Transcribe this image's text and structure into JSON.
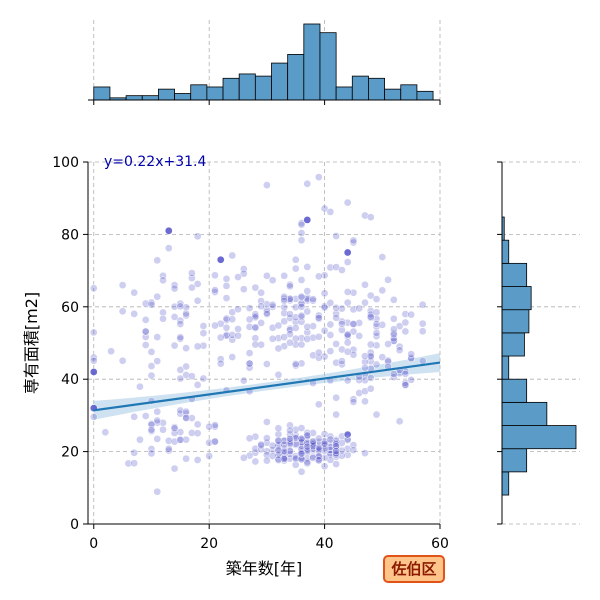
{
  "chart_data": {
    "type": "scatter",
    "xlabel": "築年数[年]",
    "ylabel": "専有面積[m2]",
    "xlim": [
      -1,
      60
    ],
    "ylim": [
      0,
      100
    ],
    "x_ticks": [
      0,
      20,
      40,
      60
    ],
    "y_ticks": [
      0,
      20,
      40,
      60,
      80,
      100
    ],
    "grid": true,
    "annotation": "y=0.22x+31.4",
    "regression": {
      "slope": 0.22,
      "intercept": 31.4,
      "ci_halfwidth_ends": 2.6,
      "ci_halfwidth_mid": 1.1
    },
    "badge": "佐伯区",
    "colors": {
      "points": "#5050c8",
      "regression_line": "#1f77b4",
      "confidence_band": "#a6cbe6",
      "histogram": "#5a9bc8",
      "annotation": "#0000aa",
      "badge_fill": "#ffc48a",
      "badge_border": "#e0541a"
    },
    "x_hist": {
      "bin_start": 0,
      "bin_width": 2.8,
      "counts": [
        6,
        1,
        2,
        2,
        5,
        3,
        7,
        6,
        10,
        12,
        11,
        17,
        21,
        35,
        31,
        6,
        11,
        10,
        5,
        7,
        4
      ]
    },
    "y_hist": {
      "bin_start": 8,
      "bin_width": 6.4,
      "counts": [
        3,
        11,
        33,
        20,
        11,
        3,
        10,
        12,
        13,
        11,
        3,
        1,
        0,
        0,
        0
      ]
    },
    "clusters": [
      {
        "cx": 37,
        "cy": 21,
        "sx": 4.5,
        "sy": 2.5,
        "n": 170
      },
      {
        "cx": 35,
        "cy": 57,
        "sx": 8,
        "sy": 6,
        "n": 150
      },
      {
        "cx": 48,
        "cy": 45,
        "sx": 6,
        "sy": 10,
        "n": 90
      },
      {
        "cx": 16,
        "cy": 55,
        "sx": 7,
        "sy": 10,
        "n": 80
      },
      {
        "cx": 14,
        "cy": 25,
        "sx": 5,
        "sy": 4,
        "n": 55
      },
      {
        "cx": 40,
        "cy": 82,
        "sx": 6,
        "sy": 8,
        "n": 20
      }
    ],
    "highlight_points": [
      {
        "x": 0,
        "y": 42
      },
      {
        "x": 0,
        "y": 32
      },
      {
        "x": 44,
        "y": 75
      },
      {
        "x": 22,
        "y": 73
      },
      {
        "x": 13,
        "y": 81
      },
      {
        "x": 37,
        "y": 84
      }
    ]
  }
}
